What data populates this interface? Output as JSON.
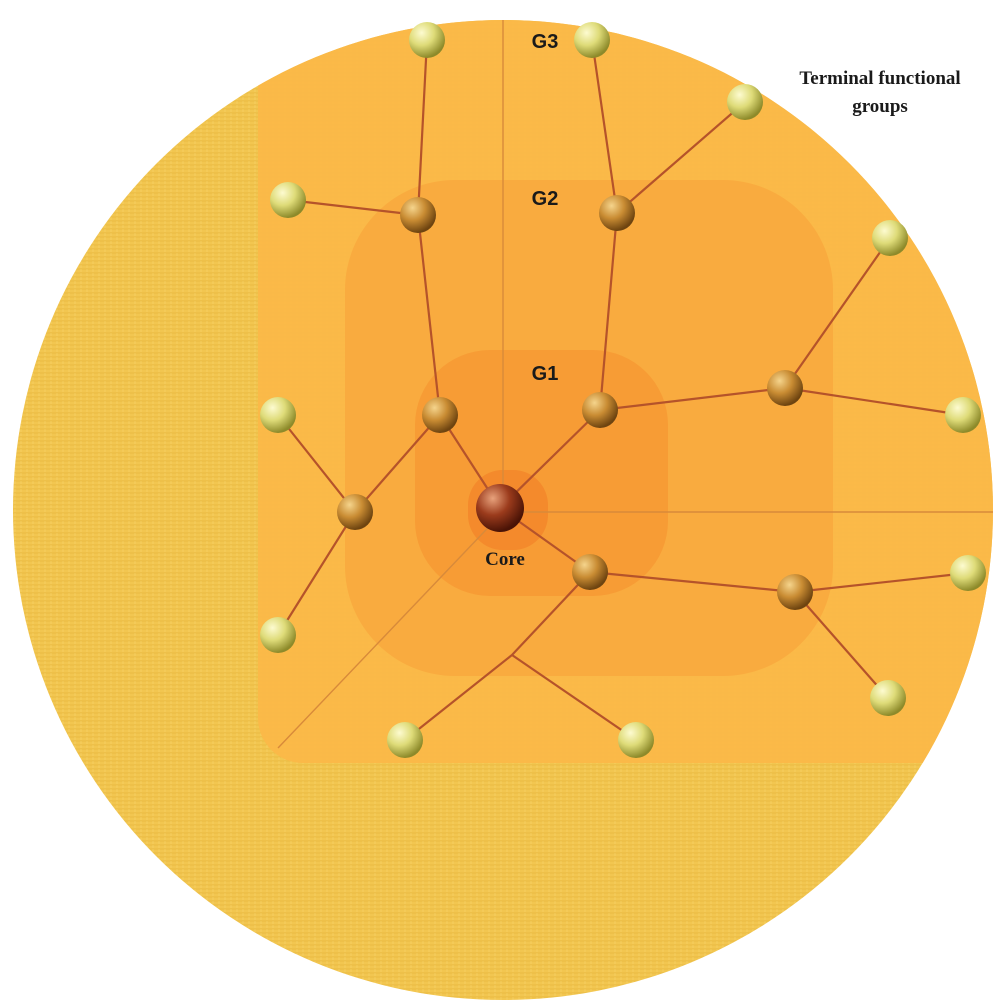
{
  "labels": {
    "g1": "G1",
    "g2": "G2",
    "g3": "G3",
    "core": "Core",
    "terminal": [
      "Terminal functional",
      "groups"
    ]
  }
}
